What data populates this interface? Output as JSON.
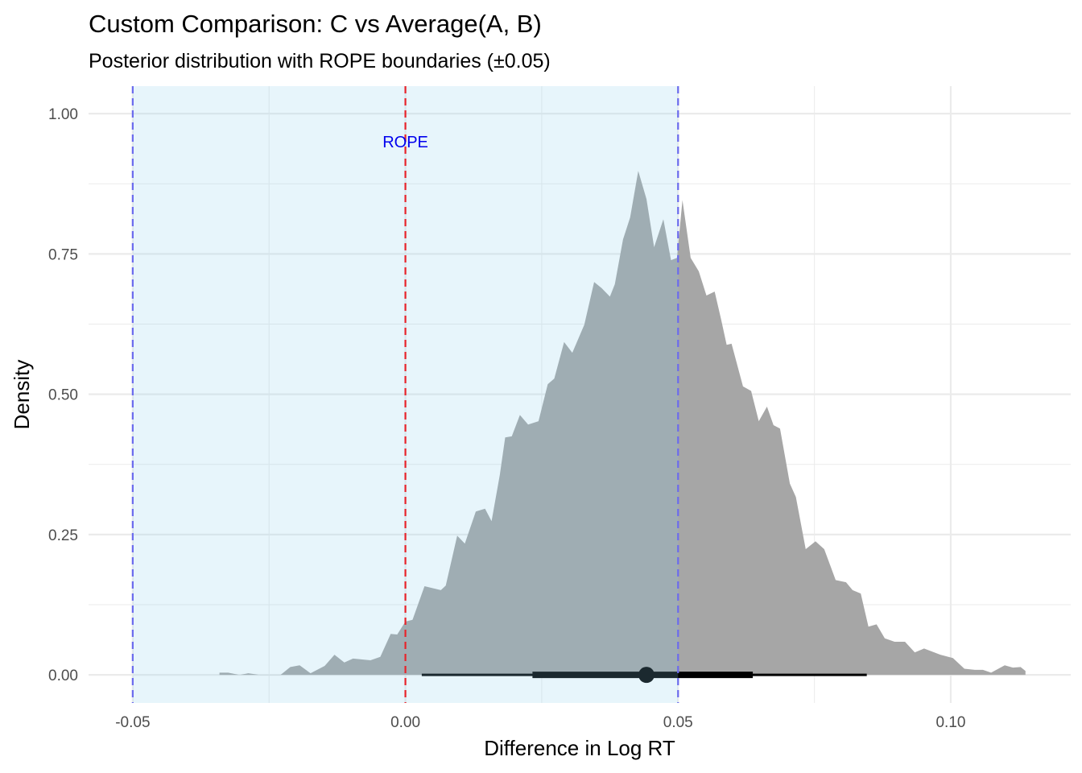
{
  "chart_data": {
    "type": "area",
    "title": "Custom Comparison: C vs Average(A, B)",
    "subtitle": "Posterior distribution with ROPE boundaries (±0.05)",
    "xlabel": "Difference in Log RT",
    "ylabel": "Density",
    "xlim": [
      -0.0581,
      0.122
    ],
    "ylim": [
      -0.05,
      1.049
    ],
    "x_ticks": [
      -0.05,
      0.0,
      0.05,
      0.1
    ],
    "x_tick_labels": [
      "-0.05",
      "0.00",
      "0.05",
      "0.10"
    ],
    "y_ticks": [
      0,
      0.25,
      0.5,
      0.75,
      1.0
    ],
    "y_tick_labels": [
      "0.00",
      "0.25",
      "0.50",
      "0.75",
      "1.00"
    ],
    "grid": true,
    "rope": {
      "low": -0.05,
      "high": 0.05,
      "label": "ROPE",
      "label_y": 0.95,
      "fill": "#87ceeb",
      "line_color": "#6b6bee"
    },
    "zero_line": {
      "x": 0.0,
      "color": "#e8232a"
    },
    "density_color": "#a6a6a6",
    "density": {
      "x": [
        -0.0341,
        -0.0325,
        -0.0304,
        -0.0288,
        -0.0267,
        -0.0229,
        -0.0211,
        -0.0194,
        -0.0174,
        -0.0148,
        -0.013,
        -0.0112,
        -0.0096,
        -0.0064,
        -0.0046,
        -0.0027,
        -0.0015,
        0.0,
        0.0013,
        0.0035,
        0.0065,
        0.0074,
        0.0095,
        0.0109,
        0.0129,
        0.0146,
        0.0158,
        0.0173,
        0.0183,
        0.0195,
        0.021,
        0.0225,
        0.0244,
        0.0261,
        0.0273,
        0.0291,
        0.0306,
        0.0328,
        0.0346,
        0.036,
        0.0375,
        0.0384,
        0.0399,
        0.0412,
        0.0427,
        0.0442,
        0.0456,
        0.0473,
        0.0487,
        0.0498,
        0.0508,
        0.0523,
        0.0538,
        0.0552,
        0.0567,
        0.0579,
        0.0589,
        0.0598,
        0.0619,
        0.0634,
        0.0648,
        0.0663,
        0.0675,
        0.0687,
        0.0705,
        0.0716,
        0.0734,
        0.0752,
        0.0768,
        0.0789,
        0.0808,
        0.082,
        0.0835,
        0.0849,
        0.0864,
        0.0879,
        0.0897,
        0.0916,
        0.0934,
        0.0951,
        0.0981,
        0.1004,
        0.1025,
        0.1044,
        0.1059,
        0.1074,
        0.1099,
        0.1114,
        0.1128,
        0.1137
      ],
      "y": [
        0.004,
        0.004,
        0.0,
        0.003,
        0.0,
        0.0,
        0.014,
        0.017,
        0.003,
        0.016,
        0.036,
        0.022,
        0.029,
        0.026,
        0.032,
        0.073,
        0.072,
        0.095,
        0.098,
        0.158,
        0.151,
        0.159,
        0.248,
        0.234,
        0.291,
        0.296,
        0.274,
        0.356,
        0.423,
        0.425,
        0.463,
        0.446,
        0.452,
        0.518,
        0.528,
        0.593,
        0.574,
        0.624,
        0.7,
        0.689,
        0.674,
        0.696,
        0.776,
        0.815,
        0.898,
        0.848,
        0.762,
        0.812,
        0.739,
        0.743,
        0.846,
        0.743,
        0.719,
        0.676,
        0.683,
        0.633,
        0.588,
        0.59,
        0.514,
        0.506,
        0.452,
        0.478,
        0.445,
        0.439,
        0.341,
        0.317,
        0.224,
        0.238,
        0.224,
        0.169,
        0.165,
        0.151,
        0.145,
        0.086,
        0.09,
        0.065,
        0.059,
        0.059,
        0.04,
        0.047,
        0.036,
        0.03,
        0.011,
        0.009,
        0.009,
        0.004,
        0.017,
        0.013,
        0.014,
        0.007
      ]
    },
    "interval": {
      "point": 0.0442,
      "inner": [
        0.0233,
        0.0637
      ],
      "outer": [
        0.003,
        0.0846
      ],
      "color": "#000000"
    }
  }
}
